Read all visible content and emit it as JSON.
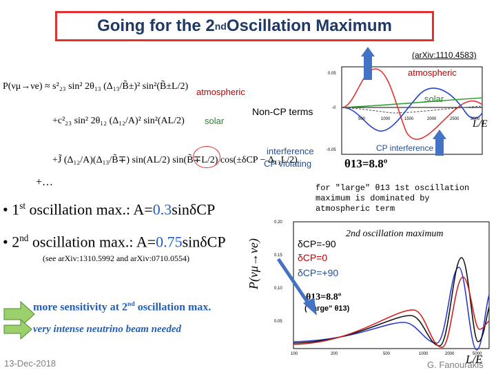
{
  "title": {
    "main": "Going for the 2",
    "sup": "nd",
    "rest": " Oscillation Maximum"
  },
  "reference": "(arXiv:1110.4583)",
  "labels": {
    "atmospheric_top": "atmospheric",
    "atmospheric_mid": "atmospheric",
    "solar_right": "solar",
    "solar_left": "solar",
    "non_cp": "Non-CP terms",
    "le_top": "L/E",
    "cp_interference": "CP interference",
    "interference": "interference",
    "cp_violating": "CP violating",
    "theta_top": "θ13=8.8º",
    "plus_dots": "+…"
  },
  "formula": {
    "row1": "P(νμ→νe) ≈ s²₂₃ sin² 2θ₁₃ (Δ₁₃/B̃±)² sin²(B̃±L/2)",
    "row2": "+c²₂₃ sin² 2θ₁₂ (Δ₁₂/A)² sin²(AL/2)",
    "row3": "+J̃ (Δ₁₂/A)(Δ₁₃/B̃∓) sin(AL/2) sin(B̃∓L/2) cos(±δCP − Δ₁₃L/2)"
  },
  "note_large": "for \"large\" θ13 1st oscillation maximum is dominated by atmospheric term",
  "bullets": {
    "b1_pre": "• 1",
    "b1_sup": "st",
    "b1_text": " oscillation max.: A=",
    "b1_val": "0.3",
    "b1_end": "sinδCP",
    "b2_pre": "• 2",
    "b2_sup": "nd",
    "b2_text": " oscillation max.: A=",
    "b2_val": "0.75",
    "b2_end": "sinδCP",
    "see": "(see arXiv:1310.5992 and arXiv:0710.0554)"
  },
  "sensitivity": {
    "pre": "more sensitivity at 2",
    "sup": "nd",
    "post": " oscillation max."
  },
  "beam": "very intense neutrino beam needed",
  "ylabel": "P(νμ→νe)",
  "lower_plot": {
    "osc2": "2nd oscillation maximum",
    "dcp1": "δCP=-90",
    "dcp2": "δCP=0",
    "dcp3": "δCP=+90",
    "theta": "θ13=8.8º",
    "large": "(\"large\" θ13)",
    "le": "L/E"
  },
  "footer": {
    "date": "13-Dec-2018",
    "author": "G. Fanourakis"
  },
  "upper_plot": {
    "yticks": [
      "0.05",
      "-0",
      "-0.05"
    ],
    "xticks": [
      "500",
      "1000",
      "1500",
      "2000",
      "2500",
      "3000"
    ]
  },
  "lower_axes": {
    "yticks": [
      "0.20",
      "0.15",
      "0.10",
      "0.05"
    ],
    "xticks": [
      "100",
      "200",
      "500",
      "1000",
      "2000",
      "5000"
    ]
  },
  "colors": {
    "title_border": "#e0312f",
    "title_text": "#1f3864",
    "accent_blue": "#1f5fbf",
    "arrow": "#4472c4"
  }
}
